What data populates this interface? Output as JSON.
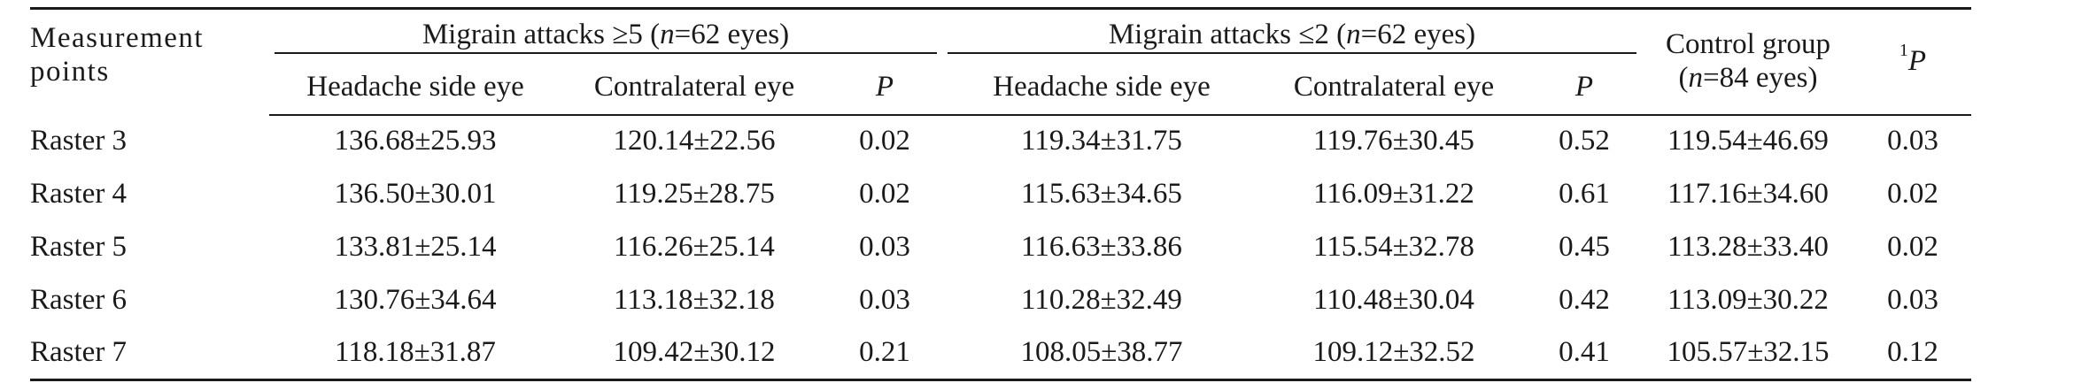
{
  "table": {
    "headers": {
      "measurement_points_line1": "Measurement",
      "measurement_points_line2": "points",
      "group1_prefix": "Migrain attacks ≥5 (",
      "group1_n": "n",
      "group1_suffix": "=62 eyes)",
      "group2_prefix": "Migrain attacks ≤2 (",
      "group2_n": "n",
      "group2_suffix": "=62 eyes)",
      "control_line1": "Control group",
      "control_line2_n": "n",
      "control_line2_suffix": "=84 eyes)",
      "control_line2_prefix": "(",
      "p1_sup": "1",
      "p1_label": "P",
      "sub_headache_side": "Headache side eye",
      "sub_contralateral": "Contralateral eye",
      "sub_p": "P"
    },
    "rows": [
      {
        "label": "Raster 3",
        "g1_headache": "136.68±25.93",
        "g1_contra": "120.14±22.56",
        "g1_p": "0.02",
        "g2_headache": "119.34±31.75",
        "g2_contra": "119.76±30.45",
        "g2_p": "0.52",
        "control": "119.54±46.69",
        "p1": "0.03"
      },
      {
        "label": "Raster 4",
        "g1_headache": "136.50±30.01",
        "g1_contra": "119.25±28.75",
        "g1_p": "0.02",
        "g2_headache": "115.63±34.65",
        "g2_contra": "116.09±31.22",
        "g2_p": "0.61",
        "control": "117.16±34.60",
        "p1": "0.02"
      },
      {
        "label": "Raster 5",
        "g1_headache": "133.81±25.14",
        "g1_contra": "116.26±25.14",
        "g1_p": "0.03",
        "g2_headache": "116.63±33.86",
        "g2_contra": "115.54±32.78",
        "g2_p": "0.45",
        "control": "113.28±33.40",
        "p1": "0.02"
      },
      {
        "label": "Raster 6",
        "g1_headache": "130.76±34.64",
        "g1_contra": "113.18±32.18",
        "g1_p": "0.03",
        "g2_headache": "110.28±32.49",
        "g2_contra": "110.48±30.04",
        "g2_p": "0.42",
        "control": "113.09±30.22",
        "p1": "0.03"
      },
      {
        "label": "Raster 7",
        "g1_headache": "118.18±31.87",
        "g1_contra": "109.42±30.12",
        "g1_p": "0.21",
        "g2_headache": "108.05±38.77",
        "g2_contra": "109.12±32.52",
        "g2_p": "0.41",
        "control": "105.57±32.15",
        "p1": "0.12"
      }
    ]
  }
}
